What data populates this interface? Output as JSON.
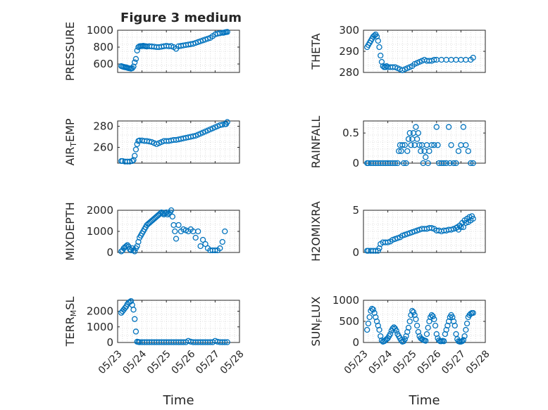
{
  "title": "Figure 3 medium",
  "x_tick_labels": [
    "05/23",
    "05/24",
    "05/25",
    "05/26",
    "05/27",
    "05/28"
  ],
  "x_label": "Time",
  "chart_data": [
    {
      "type": "scatter",
      "ylabel": "PRESSURE",
      "ylim": [
        500,
        1000
      ],
      "yticks": [
        600,
        800,
        1000
      ],
      "xlim": [
        0,
        5
      ],
      "x": [
        0.15,
        0.2,
        0.25,
        0.3,
        0.35,
        0.4,
        0.45,
        0.5,
        0.55,
        0.6,
        0.65,
        0.7,
        0.75,
        0.8,
        0.85,
        0.9,
        0.95,
        1.0,
        1.05,
        1.1,
        1.15,
        1.2,
        1.3,
        1.4,
        1.5,
        1.6,
        1.7,
        1.8,
        1.9,
        2.0,
        2.1,
        2.2,
        2.3,
        2.4,
        2.5,
        2.6,
        2.7,
        2.8,
        2.9,
        3.0,
        3.1,
        3.2,
        3.3,
        3.4,
        3.5,
        3.6,
        3.7,
        3.8,
        3.9,
        4.0,
        4.1,
        4.2,
        4.3,
        4.35,
        4.4,
        4.45,
        4.5
      ],
      "y": [
        575,
        570,
        565,
        562,
        560,
        555,
        550,
        548,
        545,
        550,
        570,
        620,
        660,
        760,
        800,
        810,
        812,
        812,
        815,
        812,
        810,
        808,
        810,
        808,
        805,
        800,
        800,
        805,
        810,
        815,
        810,
        812,
        800,
        780,
        810,
        815,
        820,
        825,
        830,
        835,
        840,
        850,
        860,
        870,
        880,
        890,
        900,
        910,
        930,
        950,
        960,
        965,
        970,
        970,
        975,
        978,
        980
      ]
    },
    {
      "type": "scatter",
      "ylabel": "THETA",
      "ylim": [
        280,
        300
      ],
      "yticks": [
        280,
        290,
        300
      ],
      "xlim": [
        0,
        5
      ],
      "x": [
        0.15,
        0.2,
        0.25,
        0.3,
        0.35,
        0.4,
        0.45,
        0.5,
        0.55,
        0.6,
        0.65,
        0.7,
        0.75,
        0.8,
        0.85,
        0.9,
        0.95,
        1.0,
        1.1,
        1.2,
        1.3,
        1.4,
        1.5,
        1.6,
        1.7,
        1.8,
        1.9,
        2.0,
        2.1,
        2.2,
        2.3,
        2.4,
        2.5,
        2.6,
        2.7,
        2.8,
        2.9,
        3.0,
        3.2,
        3.4,
        3.6,
        3.8,
        4.0,
        4.2,
        4.4,
        4.5
      ],
      "y": [
        292,
        293,
        294,
        295,
        296,
        297,
        297.5,
        298,
        297,
        295,
        292,
        288,
        285,
        283,
        282.5,
        282.5,
        283,
        282.5,
        282.5,
        282.5,
        282.5,
        282,
        281.5,
        281,
        281.5,
        282,
        282.5,
        283,
        284,
        284.5,
        285,
        285.5,
        286,
        285.5,
        285.5,
        285.5,
        286,
        286,
        286,
        286,
        286,
        286,
        286,
        286,
        286,
        287
      ]
    },
    {
      "type": "scatter",
      "ylabel": "AIR_TEMP",
      "ylim": [
        245,
        285
      ],
      "yticks": [
        260,
        280
      ],
      "xlim": [
        0,
        5
      ],
      "x": [
        0.15,
        0.2,
        0.3,
        0.4,
        0.5,
        0.6,
        0.65,
        0.7,
        0.75,
        0.8,
        0.85,
        0.9,
        1.0,
        1.1,
        1.2,
        1.3,
        1.4,
        1.5,
        1.6,
        1.7,
        1.8,
        1.9,
        2.0,
        2.1,
        2.2,
        2.3,
        2.4,
        2.5,
        2.6,
        2.7,
        2.8,
        2.9,
        3.0,
        3.1,
        3.2,
        3.3,
        3.4,
        3.5,
        3.6,
        3.7,
        3.8,
        3.9,
        4.0,
        4.1,
        4.2,
        4.3,
        4.4,
        4.45,
        4.5
      ],
      "y": [
        247,
        247,
        246.5,
        246.5,
        246.5,
        247,
        248,
        252,
        258,
        263,
        266,
        266.5,
        266.5,
        266,
        266,
        265.5,
        265,
        264,
        263,
        264,
        265,
        266,
        266,
        266,
        266.5,
        267,
        267,
        267.5,
        268,
        268.5,
        269,
        269.5,
        270,
        270.5,
        271,
        272,
        273,
        274,
        275,
        276,
        277,
        278,
        279,
        280,
        281,
        281.5,
        282,
        282,
        284
      ]
    },
    {
      "type": "scatter",
      "ylabel": "RAINFALL",
      "ylim": [
        0,
        0.7
      ],
      "yticks": [
        0,
        0.5
      ],
      "xlim": [
        0,
        5
      ],
      "x": [
        0.15,
        0.2,
        0.3,
        0.4,
        0.5,
        0.6,
        0.7,
        0.8,
        0.9,
        1.0,
        1.1,
        1.2,
        1.3,
        1.4,
        1.45,
        1.5,
        1.55,
        1.6,
        1.65,
        1.7,
        1.75,
        1.8,
        1.85,
        1.9,
        1.95,
        2.0,
        2.05,
        2.1,
        2.15,
        2.2,
        2.25,
        2.3,
        2.35,
        2.4,
        2.45,
        2.5,
        2.55,
        2.6,
        2.65,
        2.7,
        2.8,
        2.9,
        3.0,
        3.05,
        3.1,
        3.2,
        3.3,
        3.4,
        3.5,
        3.55,
        3.6,
        3.7,
        3.8,
        3.9,
        4.0,
        4.1,
        4.2,
        4.3,
        4.4,
        4.5
      ],
      "y": [
        0,
        0,
        0,
        0,
        0,
        0,
        0,
        0,
        0,
        0,
        0,
        0,
        0,
        0,
        0.2,
        0.3,
        0.2,
        0.3,
        0,
        0.3,
        0,
        0.2,
        0.4,
        0.5,
        0.3,
        0.4,
        0.5,
        0.3,
        0.6,
        0.4,
        0.5,
        0.3,
        0.2,
        0.3,
        0,
        0.2,
        0.1,
        0.3,
        0,
        0.2,
        0.3,
        0.3,
        0.6,
        0.3,
        0,
        0,
        0,
        0,
        0.6,
        0,
        0.3,
        0,
        0,
        0.2,
        0.3,
        0.6,
        0.3,
        0.2,
        0,
        0
      ]
    },
    {
      "type": "scatter",
      "ylabel": "MIXDEPTH",
      "ylim": [
        0,
        2000
      ],
      "yticks": [
        0,
        1000,
        2000
      ],
      "xlim": [
        0,
        5
      ],
      "x": [
        0.15,
        0.2,
        0.25,
        0.3,
        0.35,
        0.4,
        0.45,
        0.5,
        0.55,
        0.6,
        0.65,
        0.7,
        0.75,
        0.8,
        0.85,
        0.9,
        0.95,
        1.0,
        1.05,
        1.1,
        1.15,
        1.2,
        1.25,
        1.3,
        1.35,
        1.4,
        1.45,
        1.5,
        1.55,
        1.6,
        1.65,
        1.7,
        1.75,
        1.8,
        1.85,
        1.9,
        1.95,
        2.0,
        2.05,
        2.1,
        2.15,
        2.2,
        2.25,
        2.3,
        2.35,
        2.4,
        2.5,
        2.6,
        2.7,
        2.8,
        2.9,
        3.0,
        3.1,
        3.2,
        3.3,
        3.4,
        3.5,
        3.6,
        3.7,
        3.8,
        3.9,
        4.0,
        4.1,
        4.2,
        4.3,
        4.4
      ],
      "y": [
        50,
        100,
        200,
        250,
        300,
        350,
        280,
        150,
        100,
        200,
        100,
        50,
        200,
        300,
        500,
        700,
        800,
        900,
        1000,
        1100,
        1200,
        1300,
        1350,
        1400,
        1450,
        1500,
        1550,
        1600,
        1650,
        1700,
        1750,
        1800,
        1850,
        1900,
        1850,
        1800,
        1850,
        1900,
        1800,
        1850,
        1900,
        2000,
        1700,
        1300,
        1000,
        650,
        1300,
        1000,
        1100,
        1050,
        1000,
        1100,
        1000,
        700,
        1000,
        300,
        600,
        400,
        200,
        100,
        100,
        100,
        100,
        200,
        500,
        1000
      ]
    },
    {
      "type": "scatter",
      "ylabel": "H2OMIXRA",
      "ylim": [
        0,
        5
      ],
      "yticks": [
        0,
        5
      ],
      "xlim": [
        0,
        5
      ],
      "x": [
        0.15,
        0.2,
        0.3,
        0.4,
        0.5,
        0.6,
        0.65,
        0.7,
        0.8,
        0.9,
        1.0,
        1.1,
        1.2,
        1.3,
        1.4,
        1.5,
        1.6,
        1.7,
        1.8,
        1.9,
        2.0,
        2.1,
        2.2,
        2.3,
        2.4,
        2.5,
        2.6,
        2.7,
        2.8,
        2.9,
        3.0,
        3.1,
        3.2,
        3.3,
        3.4,
        3.5,
        3.6,
        3.7,
        3.8,
        3.85,
        3.9,
        3.95,
        4.0,
        4.05,
        4.1,
        4.15,
        4.2,
        4.25,
        4.3,
        4.35,
        4.4,
        4.45,
        4.5
      ],
      "y": [
        0.2,
        0.2,
        0.2,
        0.2,
        0.2,
        0.2,
        0.5,
        1.0,
        1.2,
        1.2,
        1.2,
        1.3,
        1.5,
        1.6,
        1.7,
        1.8,
        2.0,
        2.1,
        2.2,
        2.3,
        2.4,
        2.5,
        2.6,
        2.7,
        2.8,
        2.8,
        2.8,
        2.9,
        2.9,
        2.8,
        2.6,
        2.6,
        2.5,
        2.6,
        2.6,
        2.7,
        2.7,
        2.8,
        2.9,
        3.0,
        2.7,
        3.2,
        3.0,
        3.5,
        3.0,
        3.8,
        3.5,
        4.0,
        3.6,
        4.2,
        3.8,
        4.3,
        4.0
      ]
    },
    {
      "type": "scatter",
      "ylabel": "TERR_MSL",
      "ylim": [
        0,
        2700
      ],
      "yticks": [
        0,
        1000,
        2000
      ],
      "xlim": [
        0,
        5
      ],
      "x": [
        0.15,
        0.2,
        0.25,
        0.3,
        0.35,
        0.4,
        0.45,
        0.5,
        0.55,
        0.6,
        0.65,
        0.7,
        0.75,
        0.8,
        0.85,
        0.9,
        1.0,
        1.1,
        1.2,
        1.3,
        1.4,
        1.5,
        1.6,
        1.7,
        1.8,
        1.9,
        2.0,
        2.1,
        2.2,
        2.3,
        2.4,
        2.5,
        2.6,
        2.7,
        2.8,
        2.9,
        3.0,
        3.1,
        3.2,
        3.3,
        3.4,
        3.5,
        3.6,
        3.7,
        3.8,
        3.9,
        4.0,
        4.1,
        4.2,
        4.3,
        4.4,
        4.5
      ],
      "y": [
        1900,
        2000,
        2100,
        2200,
        2300,
        2450,
        2550,
        2600,
        2650,
        2400,
        2100,
        1500,
        700,
        50,
        30,
        20,
        20,
        20,
        20,
        20,
        20,
        20,
        20,
        20,
        20,
        20,
        20,
        20,
        20,
        20,
        20,
        20,
        20,
        20,
        20,
        100,
        50,
        20,
        20,
        20,
        20,
        20,
        20,
        20,
        20,
        20,
        100,
        50,
        20,
        20,
        20,
        20
      ]
    },
    {
      "type": "scatter",
      "ylabel": "SUN_FLUX",
      "ylim": [
        0,
        1000
      ],
      "yticks": [
        0,
        500,
        1000
      ],
      "xlim": [
        0,
        5
      ],
      "x": [
        0.15,
        0.2,
        0.25,
        0.3,
        0.35,
        0.4,
        0.45,
        0.5,
        0.55,
        0.6,
        0.65,
        0.7,
        0.75,
        0.8,
        0.85,
        0.9,
        0.95,
        1.0,
        1.05,
        1.1,
        1.15,
        1.2,
        1.25,
        1.3,
        1.35,
        1.4,
        1.45,
        1.5,
        1.55,
        1.6,
        1.65,
        1.7,
        1.75,
        1.8,
        1.85,
        1.9,
        1.95,
        2.0,
        2.05,
        2.1,
        2.15,
        2.2,
        2.25,
        2.3,
        2.35,
        2.4,
        2.45,
        2.5,
        2.55,
        2.6,
        2.65,
        2.7,
        2.75,
        2.8,
        2.85,
        2.9,
        2.95,
        3.0,
        3.05,
        3.1,
        3.15,
        3.2,
        3.25,
        3.3,
        3.35,
        3.4,
        3.45,
        3.5,
        3.55,
        3.6,
        3.65,
        3.7,
        3.75,
        3.8,
        3.85,
        3.9,
        3.95,
        4.0,
        4.05,
        4.1,
        4.15,
        4.2,
        4.25,
        4.3,
        4.35,
        4.4,
        4.45,
        4.5
      ],
      "y": [
        300,
        450,
        600,
        750,
        800,
        780,
        700,
        600,
        500,
        400,
        300,
        150,
        50,
        20,
        30,
        50,
        80,
        100,
        150,
        200,
        280,
        330,
        360,
        330,
        280,
        200,
        150,
        100,
        50,
        20,
        30,
        80,
        150,
        250,
        350,
        500,
        650,
        750,
        720,
        650,
        550,
        400,
        250,
        150,
        100,
        80,
        60,
        50,
        40,
        200,
        350,
        500,
        600,
        650,
        620,
        550,
        400,
        200,
        100,
        50,
        30,
        30,
        40,
        30,
        200,
        300,
        400,
        500,
        600,
        650,
        600,
        500,
        400,
        200,
        80,
        30,
        20,
        20,
        30,
        60,
        150,
        300,
        450,
        600,
        650,
        680,
        700,
        700
      ]
    }
  ]
}
